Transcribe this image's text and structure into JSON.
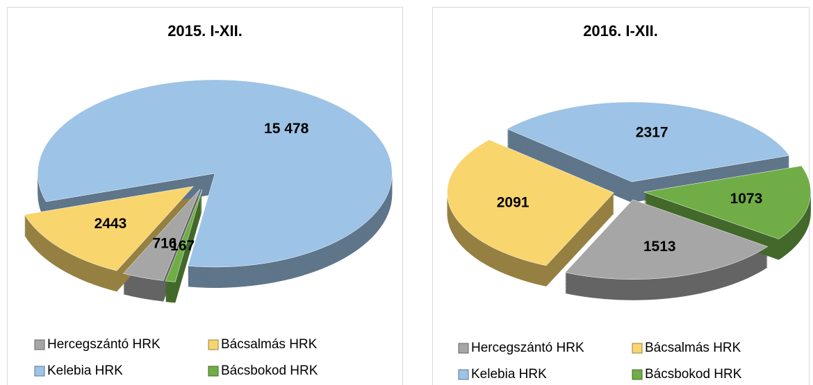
{
  "chart_data": [
    {
      "type": "pie",
      "title": "2015. I-XII.",
      "categories": [
        "Hercegszántó HRK",
        "Bácsalmás HRK",
        "Kelebia HRK",
        "Bácsbokod HRK"
      ],
      "values": [
        716,
        2443,
        15478,
        167
      ],
      "value_labels": [
        "716",
        "2443",
        "15 478",
        "167"
      ],
      "colors": [
        "#a6a6a6",
        "#f9d56e",
        "#9dc3e6",
        "#70ad47"
      ]
    },
    {
      "type": "pie",
      "title": "2016. I-XII.",
      "categories": [
        "Hercegszántó HRK",
        "Bácsalmás HRK",
        "Kelebia HRK",
        "Bácsbokod HRK"
      ],
      "values": [
        1513,
        2091,
        2317,
        1073
      ],
      "colors": [
        "#a6a6a6",
        "#f9d56e",
        "#9dc3e6",
        "#70ad47"
      ]
    }
  ]
}
